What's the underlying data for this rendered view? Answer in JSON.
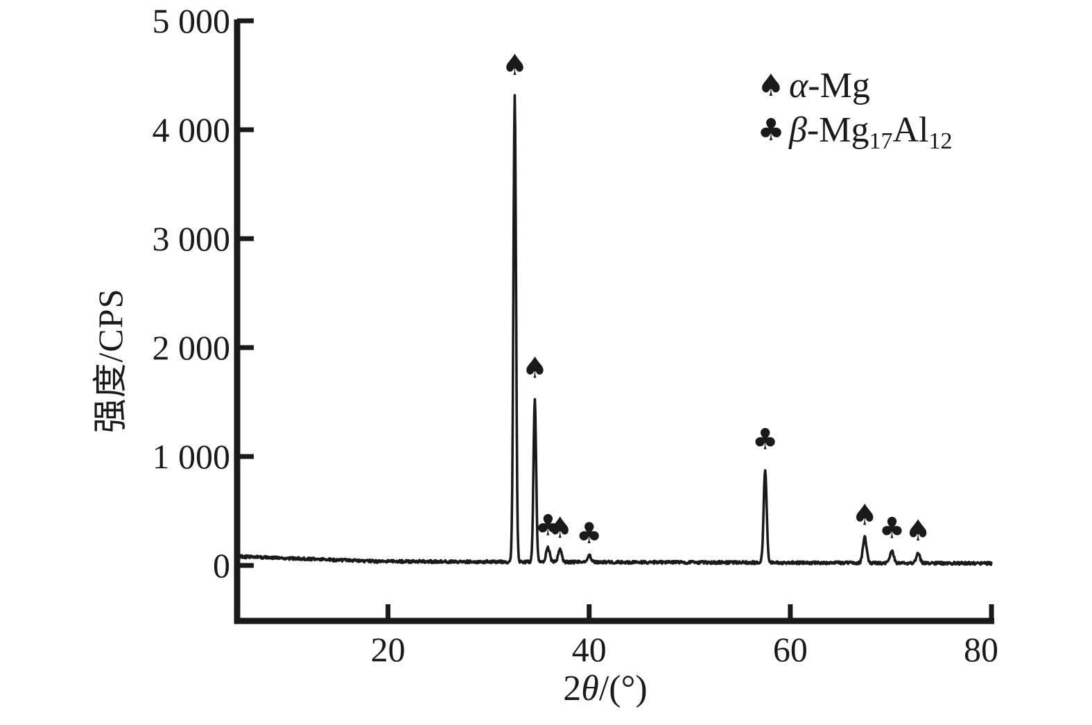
{
  "figure": {
    "background": "#ffffff",
    "ink_color": "#1c1919"
  },
  "chart_data": {
    "type": "line",
    "subtype": "xrd-diffraction-pattern",
    "title": "",
    "xlabel": "2θ/(°)",
    "xlabel_parts": {
      "prefix": "2",
      "theta": "θ",
      "suffix": "/(°)"
    },
    "ylabel": "强度/CPS",
    "xlim": [
      5,
      80
    ],
    "ylim": [
      -510,
      5000
    ],
    "grid": false,
    "legend_position": "upper-right-inside",
    "x_ticks": [
      {
        "value": 20,
        "label": "20"
      },
      {
        "value": 40,
        "label": "40"
      },
      {
        "value": 60,
        "label": "60"
      },
      {
        "value": 80,
        "label": "80"
      }
    ],
    "y_ticks": [
      {
        "value": 0,
        "label": "0"
      },
      {
        "value": 1000,
        "label": "1 000"
      },
      {
        "value": 2000,
        "label": "2 000"
      },
      {
        "value": 3000,
        "label": "3 000"
      },
      {
        "value": 4000,
        "label": "4 000"
      },
      {
        "value": 5000,
        "label": "5 000"
      }
    ],
    "baseline_cps": {
      "at_5deg": 82,
      "at_20deg": 37,
      "at_80deg": 19,
      "noise_amplitude": 13
    },
    "marker_glyphs": {
      "spade": "♠",
      "club": "♣"
    },
    "peaks": [
      {
        "two_theta": 32.6,
        "intensity_cps": 4280,
        "phase": "α-Mg",
        "marker": "spade"
      },
      {
        "two_theta": 34.6,
        "intensity_cps": 1500,
        "phase": "α-Mg",
        "marker": "spade"
      },
      {
        "two_theta": 35.9,
        "intensity_cps": 130,
        "phase": "β-Mg17Al12",
        "marker": "club"
      },
      {
        "two_theta": 37.1,
        "intensity_cps": 110,
        "phase": "α-Mg",
        "marker": "spade"
      },
      {
        "two_theta": 40.0,
        "intensity_cps": 60,
        "phase": "β-Mg17Al12",
        "marker": "club"
      },
      {
        "two_theta": 57.5,
        "intensity_cps": 850,
        "phase": "β-Mg17Al12",
        "marker": "club"
      },
      {
        "two_theta": 67.4,
        "intensity_cps": 235,
        "phase": "α-Mg",
        "marker": "spade"
      },
      {
        "two_theta": 70.1,
        "intensity_cps": 115,
        "phase": "β-Mg17Al12",
        "marker": "club"
      },
      {
        "two_theta": 72.7,
        "intensity_cps": 95,
        "phase": "α-Mg",
        "marker": "spade"
      }
    ]
  },
  "legend": {
    "items": [
      {
        "symbol": "♠",
        "symbol_name": "spade-icon",
        "label": "α-Mg",
        "parts": {
          "italic": "α",
          "rest": "-Mg"
        }
      },
      {
        "symbol": "♣",
        "symbol_name": "club-icon",
        "label": "β-Mg17Al12",
        "parts": {
          "italic": "β",
          "base1": "-Mg",
          "sub1": "17",
          "base2": "Al",
          "sub2": "12"
        }
      }
    ]
  }
}
